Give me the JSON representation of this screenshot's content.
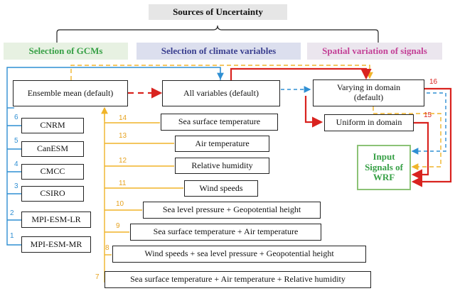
{
  "title": "Sources of Uncertainty",
  "categories": {
    "gcms": "Selection of GCMs",
    "climate_vars": "Selection of climate variables",
    "spatial": "Spatial variation of signals"
  },
  "gcm_boxes": {
    "ensemble": "Ensemble mean (default)",
    "cnrm": "CNRM",
    "canesm": "CanESM",
    "cmcc": "CMCC",
    "csiro": "CSIRO",
    "mpi_lr": "MPI-ESM-LR",
    "mpi_mr": "MPI-ESM-MR"
  },
  "gcm_numbers": {
    "cnrm": "6",
    "canesm": "5",
    "cmcc": "4",
    "csiro": "3",
    "mpi_lr": "2",
    "mpi_mr": "1"
  },
  "var_boxes": {
    "all": "All variables (default)",
    "sst": "Sea surface temperature",
    "air_temp": "Air temperature",
    "rel_hum": "Relative humidity",
    "wind": "Wind speeds",
    "slp_gph": "Sea level pressure + Geopotential height",
    "sst_air": "Sea surface temperature + Air temperature",
    "wind_slp_gph": "Wind speeds + sea level pressure + Geopotential height",
    "sst_air_rh": "Sea surface temperature + Air temperature + Relative humidity"
  },
  "var_numbers": {
    "sst": "14",
    "air_temp": "13",
    "rel_hum": "12",
    "wind": "11",
    "slp_gph": "10",
    "sst_air": "9",
    "wind_slp_gph": "8",
    "sst_air_rh": "7"
  },
  "spatial_boxes": {
    "varying": "Varying in domain (default)",
    "uniform": "Uniform in domain"
  },
  "spatial_numbers": {
    "varying": "16",
    "uniform": "15"
  },
  "output_box": "Input Signals of WRF",
  "colors": {
    "blue": "#2f8fd3",
    "orange": "#f0b429",
    "red": "#d9231f",
    "green_text": "#37a046",
    "green_border": "#8cc276",
    "purple_text": "#3a3f8f",
    "magenta_text": "#c33f96"
  }
}
